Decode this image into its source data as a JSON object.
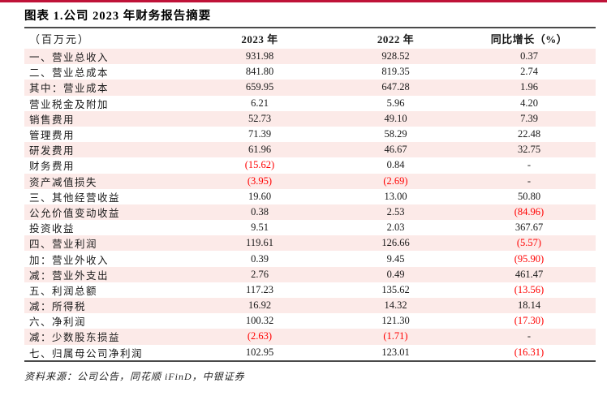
{
  "colors": {
    "accent": "#bf1238",
    "row_alt": "#fceae8",
    "negative": "#ff0000",
    "rule": "#4a4a4a"
  },
  "title": "图表 1.公司 2023 年财务报告摘要",
  "table": {
    "unit_label": "（百万元）",
    "columns": [
      "2023 年",
      "2022 年",
      "同比增长（%）"
    ],
    "rows": [
      {
        "label": "一、营业总收入",
        "y2023": "931.98",
        "y2022": "928.52",
        "growth": "0.37"
      },
      {
        "label": "二、营业总成本",
        "y2023": "841.80",
        "y2022": "819.35",
        "growth": "2.74"
      },
      {
        "label": "其中：营业成本",
        "y2023": "659.95",
        "y2022": "647.28",
        "growth": "1.96"
      },
      {
        "label": "营业税金及附加",
        "y2023": "6.21",
        "y2022": "5.96",
        "growth": "4.20"
      },
      {
        "label": "销售费用",
        "y2023": "52.73",
        "y2022": "49.10",
        "growth": "7.39"
      },
      {
        "label": "管理费用",
        "y2023": "71.39",
        "y2022": "58.29",
        "growth": "22.48"
      },
      {
        "label": "研发费用",
        "y2023": "61.96",
        "y2022": "46.67",
        "growth": "32.75"
      },
      {
        "label": "财务费用",
        "y2023": "(15.62)",
        "y2022": "0.84",
        "growth": "-"
      },
      {
        "label": "资产减值损失",
        "y2023": "(3.95)",
        "y2022": "(2.69)",
        "growth": "-"
      },
      {
        "label": "三、其他经营收益",
        "y2023": "19.60",
        "y2022": "13.00",
        "growth": "50.80"
      },
      {
        "label": "公允价值变动收益",
        "y2023": "0.38",
        "y2022": "2.53",
        "growth": "(84.96)"
      },
      {
        "label": "投资收益",
        "y2023": "9.51",
        "y2022": "2.03",
        "growth": "367.67"
      },
      {
        "label": "四、营业利润",
        "y2023": "119.61",
        "y2022": "126.66",
        "growth": "(5.57)"
      },
      {
        "label": "加：营业外收入",
        "y2023": "0.39",
        "y2022": "9.45",
        "growth": "(95.90)"
      },
      {
        "label": "减：营业外支出",
        "y2023": "2.76",
        "y2022": "0.49",
        "growth": "461.47"
      },
      {
        "label": "五、利润总额",
        "y2023": "117.23",
        "y2022": "135.62",
        "growth": "(13.56)"
      },
      {
        "label": "减：所得税",
        "y2023": "16.92",
        "y2022": "14.32",
        "growth": "18.14"
      },
      {
        "label": "六、净利润",
        "y2023": "100.32",
        "y2022": "121.30",
        "growth": "(17.30)"
      },
      {
        "label": "减：少数股东损益",
        "y2023": "(2.63)",
        "y2022": "(1.71)",
        "growth": "-"
      },
      {
        "label": "七、归属母公司净利润",
        "y2023": "102.95",
        "y2022": "123.01",
        "growth": "(16.31)"
      }
    ]
  },
  "source": "资料来源：公司公告，同花顺 iFinD，中银证券"
}
